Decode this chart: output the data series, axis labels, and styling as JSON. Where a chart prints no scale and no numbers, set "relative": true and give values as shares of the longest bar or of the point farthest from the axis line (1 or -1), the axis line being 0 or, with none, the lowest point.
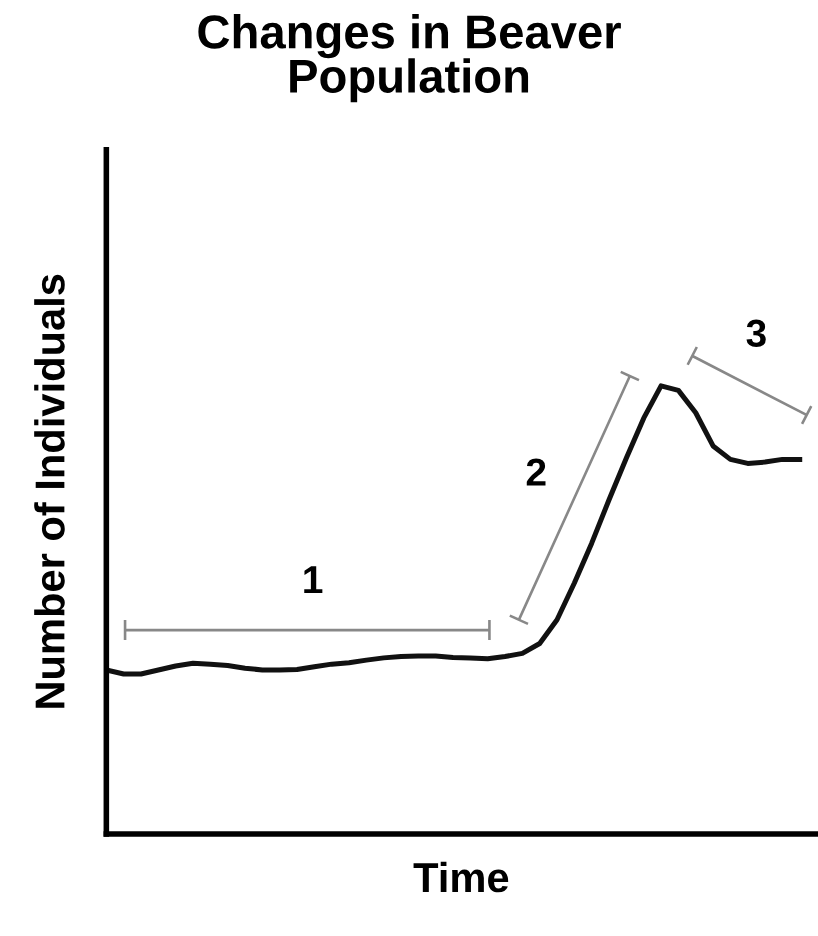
{
  "chart_data": {
    "type": "line",
    "relative": true,
    "title": "Changes in Beaver\nPopulation",
    "xlabel": "Time",
    "ylabel": "Number of Individuals",
    "categories": [
      null,
      null,
      null,
      null,
      null,
      null,
      null,
      null,
      null,
      null,
      null,
      null,
      null,
      null,
      null,
      null,
      null,
      null,
      null,
      null,
      null,
      null,
      null,
      null,
      null,
      null,
      null,
      null,
      null,
      null,
      null,
      null,
      null,
      null,
      null,
      null,
      null,
      null,
      null,
      null,
      null
    ],
    "series": [
      {
        "color": "#111111",
        "values": [
          0.366,
          0.357,
          0.357,
          0.366,
          0.375,
          0.381,
          0.379,
          0.376,
          0.37,
          0.366,
          0.366,
          0.367,
          0.373,
          0.379,
          0.382,
          0.388,
          0.393,
          0.396,
          0.397,
          0.397,
          0.394,
          0.393,
          0.391,
          0.396,
          0.403,
          0.425,
          0.478,
          0.56,
          0.649,
          0.746,
          0.839,
          0.928,
          1.0,
          0.99,
          0.94,
          0.866,
          0.836,
          0.827,
          0.83,
          0.836,
          0.836
        ]
      }
    ],
    "annotations": [
      "1",
      "2",
      "3"
    ],
    "legend": false,
    "marker": "none",
    "line_style": "solid"
  }
}
